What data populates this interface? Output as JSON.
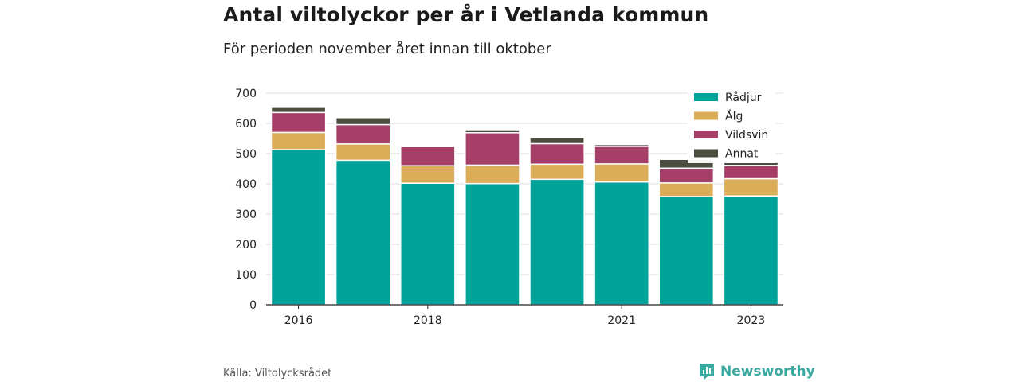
{
  "title": "Antal viltolyckor per år i Vetlanda kommun",
  "subtitle": "För perioden november året innan till oktober",
  "source": "Källa: Viltolycksrådet",
  "brand": {
    "name": "Newsworthy",
    "icon": "newsworthy-logo-icon",
    "color": "#3aa99f"
  },
  "chart_data": {
    "type": "bar",
    "stacked": true,
    "categories": [
      "2016",
      "2017",
      "2018",
      "2019",
      "2020",
      "2021",
      "2022",
      "2023"
    ],
    "x_tick_labels": [
      "2016",
      "",
      "2018",
      "",
      "",
      "2021",
      "",
      "2023"
    ],
    "series": [
      {
        "name": "Rådjur",
        "color": "#00a39a",
        "values": [
          513,
          478,
          402,
          401,
          415,
          406,
          358,
          360
        ]
      },
      {
        "name": "Älg",
        "color": "#dcad58",
        "values": [
          57,
          54,
          58,
          61,
          50,
          60,
          45,
          57
        ]
      },
      {
        "name": "Vildsvin",
        "color": "#a63f67",
        "values": [
          66,
          64,
          63,
          107,
          68,
          58,
          49,
          44
        ]
      },
      {
        "name": "Annat",
        "color": "#4b4e3f",
        "values": [
          17,
          23,
          0,
          10,
          20,
          6,
          29,
          10
        ]
      }
    ],
    "ylim": [
      0,
      700
    ],
    "yticks": [
      0,
      100,
      200,
      300,
      400,
      500,
      600,
      700
    ],
    "grid": true,
    "legend_position": "top-right"
  }
}
